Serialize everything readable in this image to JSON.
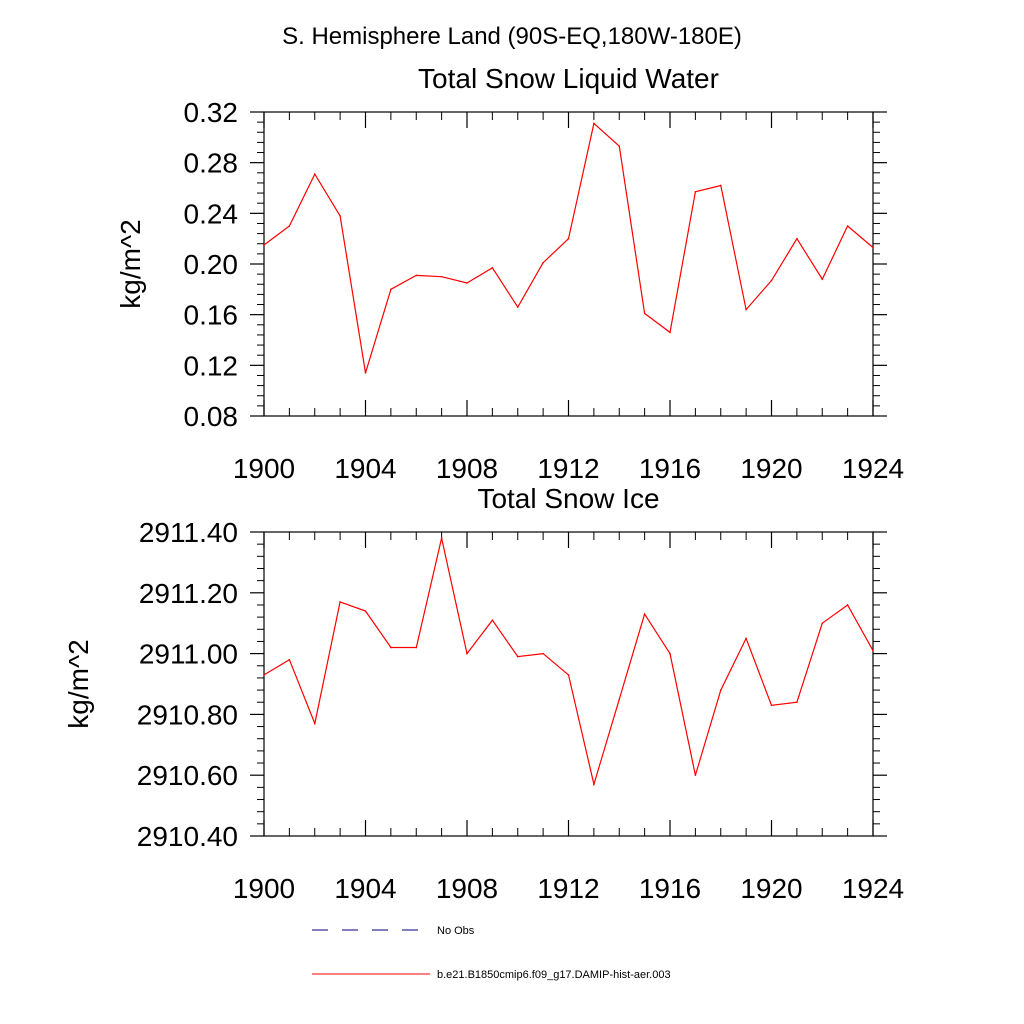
{
  "figure_title": "S. Hemisphere Land (90S-EQ,180W-180E)",
  "colors": {
    "model": "#ff0000",
    "obs": "#000080"
  },
  "legend": {
    "obs_label": "No Obs",
    "model_label": "b.e21.B1850cmip6.f09_g17.DAMIP-hist-aer.003"
  },
  "chart_data": [
    {
      "type": "line",
      "title": "Total Snow Liquid Water",
      "ylabel": "kg/m^2",
      "xlabel": "",
      "x": [
        1900,
        1901,
        1902,
        1903,
        1904,
        1905,
        1906,
        1907,
        1908,
        1909,
        1910,
        1911,
        1912,
        1913,
        1914,
        1915,
        1916,
        1917,
        1918,
        1919,
        1920,
        1921,
        1922,
        1923,
        1924
      ],
      "series": [
        {
          "name": "b.e21.B1850cmip6.f09_g17.DAMIP-hist-aer.003",
          "values": [
            0.215,
            0.23,
            0.271,
            0.238,
            0.114,
            0.18,
            0.191,
            0.19,
            0.185,
            0.197,
            0.166,
            0.201,
            0.22,
            0.311,
            0.293,
            0.161,
            0.146,
            0.257,
            0.262,
            0.164,
            0.187,
            0.22,
            0.188,
            0.23,
            0.213
          ]
        }
      ],
      "xlim": [
        1900,
        1924
      ],
      "ylim": [
        0.08,
        0.32
      ],
      "xticks": [
        "1900",
        "1904",
        "1908",
        "1912",
        "1916",
        "1920",
        "1924"
      ],
      "yticks": [
        "0.08",
        "0.12",
        "0.16",
        "0.20",
        "0.24",
        "0.28",
        "0.32"
      ]
    },
    {
      "type": "line",
      "title": "Total Snow Ice",
      "ylabel": "kg/m^2",
      "xlabel": "",
      "x": [
        1900,
        1901,
        1902,
        1903,
        1904,
        1905,
        1906,
        1907,
        1908,
        1909,
        1910,
        1911,
        1912,
        1913,
        1914,
        1915,
        1916,
        1917,
        1918,
        1919,
        1920,
        1921,
        1922,
        1923,
        1924
      ],
      "series": [
        {
          "name": "b.e21.B1850cmip6.f09_g17.DAMIP-hist-aer.003",
          "values": [
            2910.93,
            2910.98,
            2910.77,
            2911.17,
            2911.14,
            2911.02,
            2911.02,
            2911.38,
            2911.0,
            2911.11,
            2910.99,
            2911.0,
            2910.93,
            2910.57,
            2910.85,
            2911.13,
            2911.0,
            2910.6,
            2910.88,
            2911.05,
            2910.83,
            2910.84,
            2911.1,
            2911.16,
            2911.01
          ]
        }
      ],
      "xlim": [
        1900,
        1924
      ],
      "ylim": [
        2910.4,
        2911.4
      ],
      "xticks": [
        "1900",
        "1904",
        "1908",
        "1912",
        "1916",
        "1920",
        "1924"
      ],
      "yticks": [
        "2910.40",
        "2910.60",
        "2910.80",
        "2911.00",
        "2911.20",
        "2911.40"
      ]
    }
  ]
}
